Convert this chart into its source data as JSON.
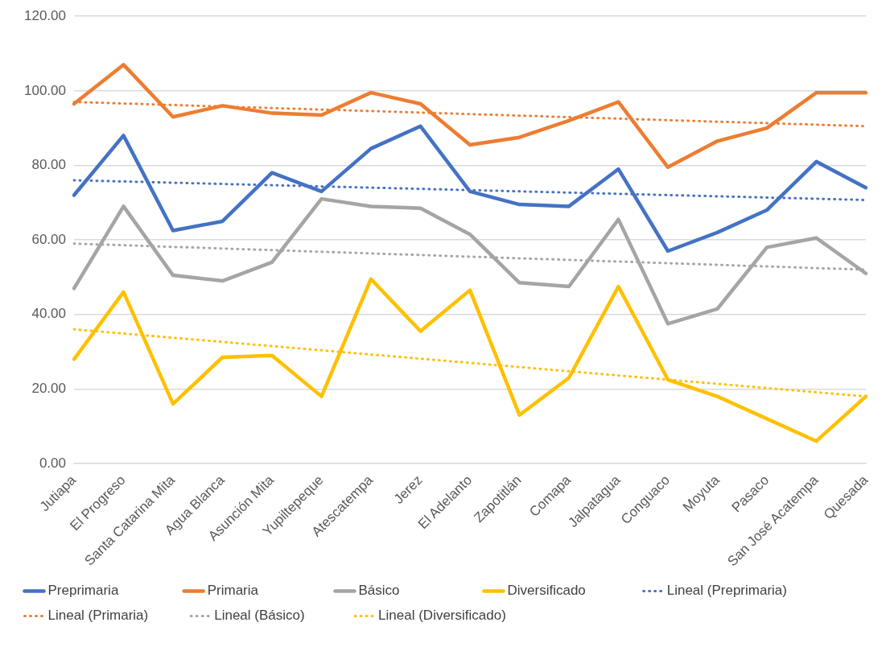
{
  "chart_data": {
    "type": "line",
    "categories": [
      "Jutiapa",
      "El Progreso",
      "Santa Catarina Mita",
      "Agua Blanca",
      "Asunción Mita",
      "Yupiltepeque",
      "Atescatempa",
      "Jerez",
      "El Adelanto",
      "Zapotitlán",
      "Comapa",
      "Jalpatagua",
      "Conguaco",
      "Moyuta",
      "Pasaco",
      "San José Acatempa",
      "Quesada"
    ],
    "series": [
      {
        "name": "Preprimaria",
        "color": "#4472c4",
        "values": [
          72,
          88,
          62.5,
          65,
          78,
          73,
          84.5,
          90.5,
          73,
          69.5,
          69,
          79,
          57,
          62,
          68,
          81,
          74
        ]
      },
      {
        "name": "Primaria",
        "color": "#ed7d31",
        "values": [
          96.5,
          107,
          93,
          96,
          94,
          93.5,
          99.5,
          96.5,
          85.5,
          87.5,
          92,
          97,
          79.5,
          86.5,
          90,
          99.5,
          99.5
        ]
      },
      {
        "name": "Básico",
        "color": "#a5a5a5",
        "values": [
          47,
          69,
          50.5,
          49,
          54,
          71,
          69,
          68.5,
          61.5,
          48.5,
          47.5,
          65.5,
          37.5,
          41.5,
          58,
          60.5,
          51
        ]
      },
      {
        "name": "Diversificado",
        "color": "#ffc000",
        "values": [
          28,
          46,
          16,
          28.5,
          29,
          18,
          49.5,
          35.5,
          46.5,
          13,
          23,
          47.5,
          22.5,
          18,
          12,
          6,
          18
        ]
      },
      {
        "name": "Lineal (Preprimaria)",
        "color": "#4472c4",
        "line_style": "dotted",
        "x": [
          "Jutiapa",
          "Quesada"
        ],
        "values": [
          76,
          70.7
        ]
      },
      {
        "name": "Lineal (Primaria)",
        "color": "#ed7d31",
        "line_style": "dotted",
        "x": [
          "Jutiapa",
          "Quesada"
        ],
        "values": [
          97,
          90.5
        ]
      },
      {
        "name": "Lineal (Básico)",
        "color": "#a5a5a5",
        "line_style": "dotted",
        "x": [
          "Jutiapa",
          "Quesada"
        ],
        "values": [
          59,
          52
        ]
      },
      {
        "name": "Lineal (Diversificado)",
        "color": "#ffc000",
        "line_style": "dotted",
        "x": [
          "Jutiapa",
          "Quesada"
        ],
        "values": [
          36,
          18
        ]
      }
    ],
    "ylim": [
      0,
      120
    ],
    "yticks": [
      {
        "value": 0,
        "label": "0.00"
      },
      {
        "value": 20,
        "label": "20.00"
      },
      {
        "value": 40,
        "label": "40.00"
      },
      {
        "value": 60,
        "label": "60.00"
      },
      {
        "value": 80,
        "label": "80.00"
      },
      {
        "value": 100,
        "label": "100.00"
      },
      {
        "value": 120,
        "label": "120.00"
      }
    ],
    "grid": "y",
    "legend": "bottom",
    "marker": "none",
    "line_style": "solid"
  }
}
